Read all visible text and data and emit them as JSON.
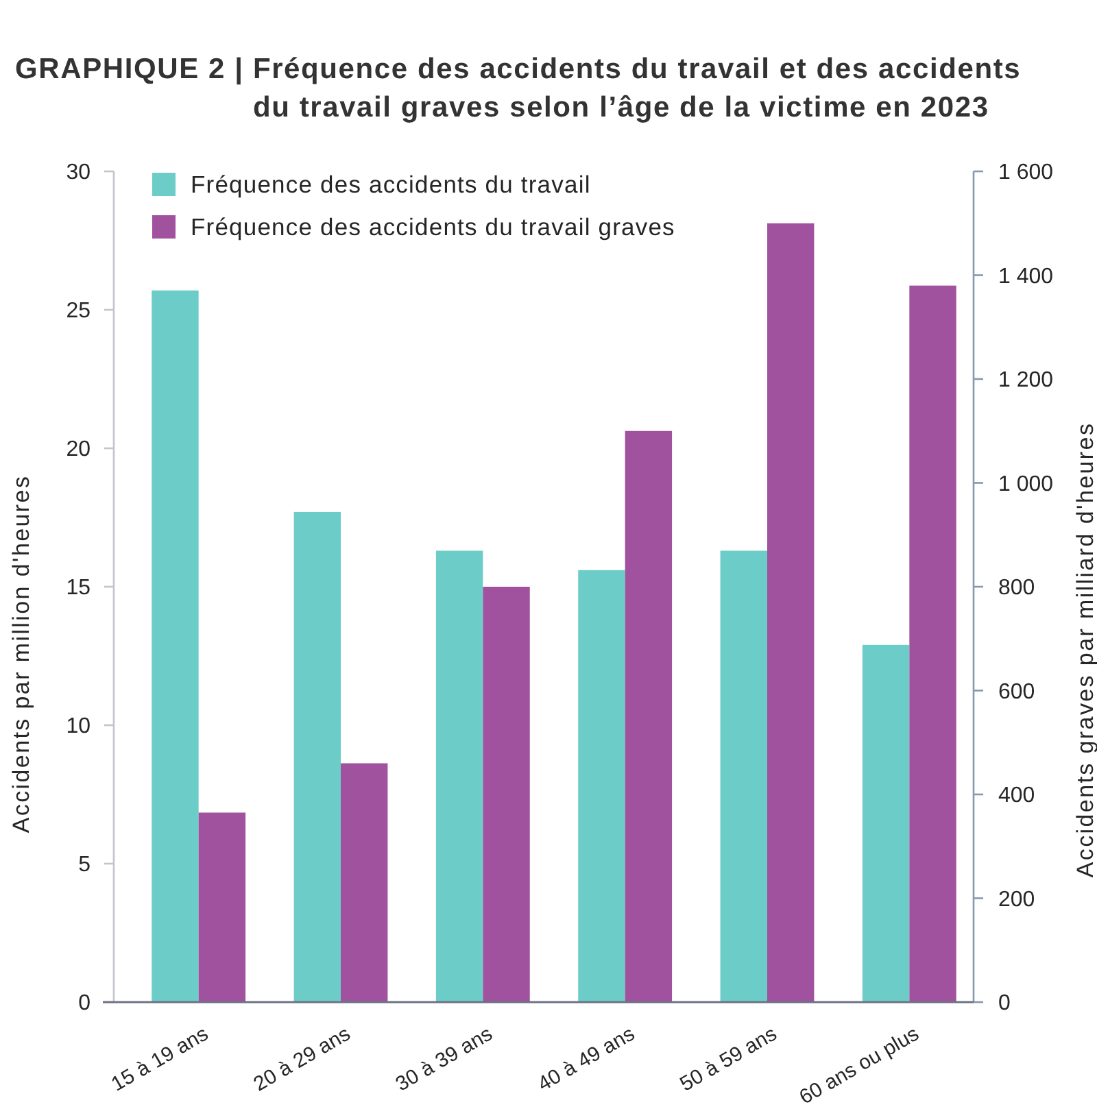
{
  "chart_data": {
    "type": "bar",
    "title": "GRAPHIQUE 2 | Fréquence des accidents du travail et des accidents du travail graves selon l’âge de la victime en 2023",
    "ylabel": "Accidents par million d'heures",
    "y2label": "Accidents graves par milliard d'heures",
    "categories": [
      "15 à 19 ans",
      "20 à 29 ans",
      "30 à 39 ans",
      "40 à 49 ans",
      "50 à 59 ans",
      "60 ans ou plus"
    ],
    "series": [
      {
        "name": "Fréquence des accidents du travail",
        "color": "#6ccdc8",
        "values": [
          25.7,
          17.7,
          16.3,
          15.6,
          16.3,
          12.9
        ]
      },
      {
        "name": "Fréquence des accidents du travail graves",
        "color": "#a0529e",
        "values": [
          365,
          460,
          800,
          1100,
          1500,
          1380
        ],
        "axis": "y2"
      }
    ],
    "ylim": [
      0,
      30
    ],
    "yticks": [
      0,
      5,
      10,
      15,
      20,
      25,
      30
    ],
    "y2lim": [
      0,
      1600
    ],
    "y2ticks": [
      0,
      200,
      400,
      600,
      800,
      {
        "value": 1000,
        "label": "1 000"
      },
      {
        "value": 1200,
        "label": "1 200"
      },
      {
        "value": 1400,
        "label": "1 400"
      },
      {
        "value": 1600,
        "label": "1 600"
      }
    ],
    "legend": "top left"
  }
}
